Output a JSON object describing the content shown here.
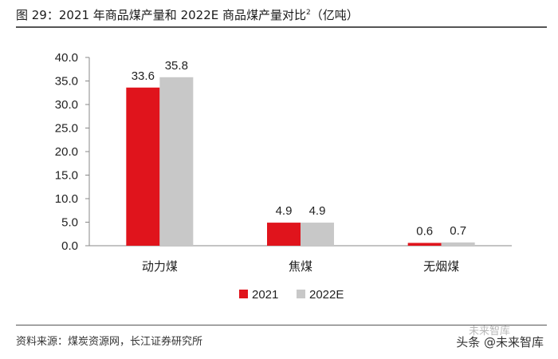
{
  "figure": {
    "title_prefix": "图 29：2021 年商品煤产量和 2022E 商品煤产量对比",
    "title_sup": "2",
    "title_suffix": "（亿吨）",
    "source": "资料来源：煤炭资源网，长江证券研究所",
    "watermark_faint": "未来智库",
    "watermark": "头条 @未来智库"
  },
  "chart_data": {
    "type": "bar",
    "categories": [
      "动力煤",
      "焦煤",
      "无烟煤"
    ],
    "series": [
      {
        "name": "2021",
        "values": [
          33.6,
          4.9,
          0.6
        ],
        "color": "#e0141c"
      },
      {
        "name": "2022E",
        "values": [
          35.8,
          4.9,
          0.7
        ],
        "color": "#c8c8c8"
      }
    ],
    "data_labels": [
      [
        "33.6",
        "4.9",
        "0.6"
      ],
      [
        "35.8",
        "4.9",
        "0.7"
      ]
    ],
    "ylim": [
      0,
      40
    ],
    "yticks": [
      "0.0",
      "5.0",
      "10.0",
      "15.0",
      "20.0",
      "25.0",
      "30.0",
      "35.0",
      "40.0"
    ],
    "xlabel": "",
    "ylabel": "",
    "grid": false,
    "legend_position": "bottom-center"
  }
}
